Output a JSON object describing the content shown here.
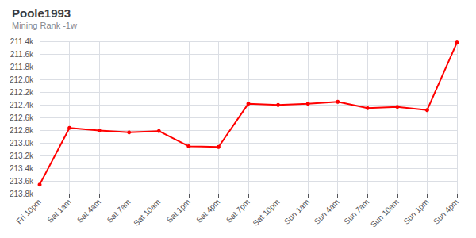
{
  "chart_data": {
    "type": "line",
    "title": "Poole1993",
    "subtitle": "Mining Rank -1w",
    "categories": [
      "Fri 10pm",
      "Sat 1am",
      "Sat 4am",
      "Sat 7am",
      "Sat 10am",
      "Sat 1pm",
      "Sat 4pm",
      "Sat 7pm",
      "Sat 10pm",
      "Sun 1am",
      "Sun 4am",
      "Sun 7am",
      "Sun 10am",
      "Sun 1pm",
      "Sun 4pm"
    ],
    "values": [
      213650,
      212760,
      212800,
      212830,
      212810,
      213050,
      213060,
      212380,
      212400,
      212380,
      212350,
      212450,
      212430,
      212480,
      211420
    ],
    "color": "#ff0000",
    "marker": "circle",
    "ylim": [
      213800,
      211400
    ],
    "yticks": [
      {
        "value": 211400,
        "label": "211.4k"
      },
      {
        "value": 211600,
        "label": "211.6k"
      },
      {
        "value": 211800,
        "label": "211.8k"
      },
      {
        "value": 212000,
        "label": "212.0k"
      },
      {
        "value": 212200,
        "label": "212.2k"
      },
      {
        "value": 212400,
        "label": "212.4k"
      },
      {
        "value": 212600,
        "label": "212.6k"
      },
      {
        "value": 212800,
        "label": "212.8k"
      },
      {
        "value": 213000,
        "label": "213.0k"
      },
      {
        "value": 213200,
        "label": "213.2k"
      },
      {
        "value": 213400,
        "label": "213.4k"
      },
      {
        "value": 213600,
        "label": "213.6k"
      },
      {
        "value": 213800,
        "label": "213.8k"
      }
    ],
    "grid": true
  }
}
